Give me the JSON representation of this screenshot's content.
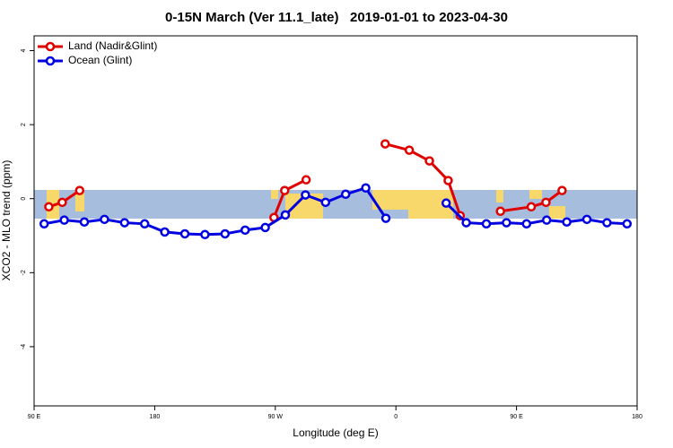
{
  "chart_data": {
    "type": "line",
    "title": "0-15N March (Ver 11.1_late)   2019-01-01 to 2023-04-30",
    "x_label": "Longitude (deg E)",
    "y_label": "XCO2 - MLO trend (ppm)",
    "xlim": [
      90,
      540
    ],
    "xticks": [
      {
        "value": 90,
        "label": "90 E"
      },
      180,
      {
        "value": 270,
        "label": "90 W"
      },
      {
        "value": 360,
        "label": "0"
      },
      {
        "value": 450,
        "label": "90 E"
      },
      {
        "value": 540,
        "label": "180"
      }
    ],
    "ylim": [
      -5.6,
      4.4
    ],
    "yticks": [
      -4,
      -2,
      0,
      2,
      4
    ],
    "legend": "upper left",
    "series": [
      {
        "name": "Land (Nadir&Glint)",
        "color": "#e00000",
        "x": [
          101,
          111,
          124,
          200,
          269,
          277,
          293,
          320,
          352,
          370,
          385,
          399,
          408,
          420,
          438,
          461,
          472,
          484
        ],
        "values": [
          -0.22,
          -0.1,
          0.22,
          null,
          -0.51,
          0.22,
          0.51,
          null,
          1.48,
          1.31,
          1.02,
          0.49,
          -0.46,
          null,
          -0.34,
          -0.22,
          -0.1,
          0.22
        ]
      },
      {
        "name": "Ocean (Glint)",
        "color": "#0000e0",
        "x": [
          97.5,
          112.5,
          127.5,
          142.5,
          157.5,
          172.5,
          187.5,
          202.5,
          217.5,
          232.5,
          247.5,
          262.5,
          277.5,
          292.5,
          307.5,
          322.5,
          337.5,
          352.5,
          367.5,
          397.5,
          412.5,
          427.5,
          442.5,
          457.5,
          472.5,
          487.5,
          502.5,
          517.5,
          532.5
        ],
        "values": [
          -0.68,
          -0.58,
          -0.63,
          -0.56,
          -0.65,
          -0.68,
          -0.9,
          -0.95,
          -0.97,
          -0.95,
          -0.85,
          -0.78,
          -0.44,
          0.1,
          -0.1,
          0.12,
          0.29,
          -0.53,
          null,
          -0.12,
          -0.65,
          -0.68,
          -0.65,
          -0.68,
          -0.58,
          -0.63,
          -0.56,
          -0.65,
          -0.68
        ]
      }
    ]
  }
}
